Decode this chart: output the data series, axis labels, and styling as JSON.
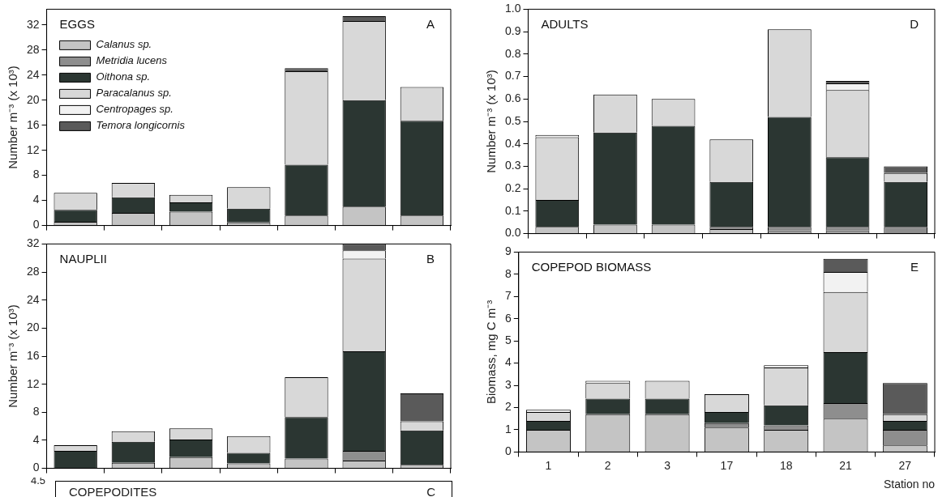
{
  "chart_data": [
    {
      "type": "bar",
      "title": "EGGS",
      "annotations": [
        "A"
      ],
      "ylabel": "Number m⁻³ (x 10³)",
      "categories": [
        null,
        null,
        null,
        null,
        null,
        null,
        null
      ],
      "stacked": true,
      "ylim": [
        0,
        34.5
      ],
      "yticks": [
        0,
        4,
        8,
        12,
        16,
        20,
        24,
        28,
        32
      ],
      "grid": false,
      "legend": "top left",
      "tick_labels": "y",
      "series": [
        {
          "name": "Calanus sp.",
          "color": "#c4c4c4",
          "values": [
            0.6,
            2.0,
            2.2,
            0.5,
            1.6,
            3.0,
            1.6
          ]
        },
        {
          "name": "Metridia lucens",
          "color": "#8e8e8e",
          "values": [
            0,
            0,
            0,
            0,
            0,
            0,
            0
          ]
        },
        {
          "name": "Oithona sp.",
          "color": "#2b3632",
          "values": [
            1.9,
            2.5,
            1.5,
            2.2,
            8.1,
            17.0,
            15.1
          ]
        },
        {
          "name": "Paracalanus sp.",
          "color": "#d8d8d8",
          "values": [
            2.7,
            2.3,
            1.2,
            3.4,
            14.9,
            12.6,
            5.4
          ]
        },
        {
          "name": "Centropages sp.",
          "color": "#f2f2f2",
          "values": [
            0,
            0,
            0,
            0,
            0,
            0,
            0
          ]
        },
        {
          "name": "Temora longicornis",
          "color": "#5a5a5a",
          "values": [
            0,
            0,
            0,
            0,
            0.5,
            0.8,
            0
          ]
        }
      ]
    },
    {
      "type": "bar",
      "title": "NAUPLII",
      "annotations": [
        "B"
      ],
      "ylabel": "Number m⁻³ (x 10³)",
      "categories": [
        null,
        null,
        null,
        null,
        null,
        null,
        null
      ],
      "stacked": true,
      "ylim": [
        0,
        32
      ],
      "yticks": [
        0,
        4,
        8,
        12,
        16,
        20,
        24,
        28,
        32
      ],
      "grid": false,
      "tick_labels": "y",
      "series": [
        {
          "color": "#c4c4c4",
          "values": [
            0,
            0.8,
            1.6,
            0.7,
            1.4,
            1.1,
            0.5
          ]
        },
        {
          "color": "#8e8e8e",
          "values": [
            0,
            0,
            0,
            0,
            0,
            1.4,
            0
          ]
        },
        {
          "color": "#2b3632",
          "values": [
            2.5,
            3.0,
            2.5,
            1.5,
            5.9,
            14.2,
            4.9
          ]
        },
        {
          "color": "#d8d8d8",
          "values": [
            0.8,
            1.5,
            1.6,
            2.4,
            5.7,
            13.2,
            1.3
          ]
        },
        {
          "color": "#f2f2f2",
          "values": [
            0,
            0,
            0,
            0,
            0,
            1.2,
            0
          ]
        },
        {
          "color": "#5a5a5a",
          "values": [
            0,
            0,
            0,
            0,
            0,
            0.9,
            4.0
          ]
        }
      ]
    },
    {
      "type": "other",
      "title": "COPEPODITES",
      "annotations": [
        "C",
        "4.5"
      ]
    },
    {
      "type": "bar",
      "title": "ADULTS",
      "annotations": [
        "D"
      ],
      "ylabel": "Number m⁻³ (x 10³)",
      "categories": [
        null,
        null,
        null,
        null,
        null,
        null,
        null
      ],
      "stacked": true,
      "ylim": [
        0,
        1.0
      ],
      "yticks": [
        {
          "value": 0,
          "label": "0.0"
        },
        0.1,
        0.2,
        0.3,
        0.4,
        0.5,
        0.6,
        0.7,
        0.8,
        0.9,
        {
          "value": 1,
          "label": "1.0"
        }
      ],
      "grid": false,
      "tick_labels": "y",
      "series": [
        {
          "color": "#c4c4c4",
          "values": [
            0.03,
            0.04,
            0.04,
            0.02,
            0.01,
            0.01,
            0
          ]
        },
        {
          "color": "#8e8e8e",
          "values": [
            0,
            0,
            0,
            0.01,
            0.02,
            0.02,
            0.03
          ]
        },
        {
          "color": "#2b3632",
          "values": [
            0.12,
            0.41,
            0.44,
            0.2,
            0.49,
            0.31,
            0.2
          ]
        },
        {
          "color": "#d8d8d8",
          "values": [
            0.28,
            0.17,
            0.12,
            0.19,
            0.39,
            0.3,
            0.04
          ]
        },
        {
          "color": "#f2f2f2",
          "values": [
            0.01,
            0,
            0,
            0,
            0,
            0.03,
            0
          ]
        },
        {
          "color": "#5a5a5a",
          "values": [
            0,
            0,
            0,
            0,
            0,
            0.01,
            0.03
          ]
        }
      ]
    },
    {
      "type": "bar",
      "title": "COPEPOD BIOMASS",
      "annotations": [
        "E"
      ],
      "ylabel": "Biomass, mg C m⁻³",
      "xlabel": "Station no",
      "categories": [
        "1",
        "2",
        "3",
        "17",
        "18",
        "21",
        "27"
      ],
      "stacked": true,
      "ylim": [
        0,
        9
      ],
      "yticks": [
        0,
        1,
        2,
        3,
        4,
        5,
        6,
        7,
        8,
        9
      ],
      "grid": false,
      "series": [
        {
          "color": "#c4c4c4",
          "values": [
            1.0,
            1.7,
            1.7,
            1.1,
            1.0,
            1.5,
            0.3
          ]
        },
        {
          "color": "#8e8e8e",
          "values": [
            0,
            0,
            0,
            0.2,
            0.2,
            0.7,
            0.7
          ]
        },
        {
          "color": "#2b3632",
          "values": [
            0.4,
            0.7,
            0.7,
            0.5,
            0.9,
            2.3,
            0.4
          ]
        },
        {
          "color": "#d8d8d8",
          "values": [
            0.4,
            0.7,
            0.8,
            0.8,
            1.7,
            2.7,
            0.3
          ]
        },
        {
          "color": "#f2f2f2",
          "values": [
            0.1,
            0.1,
            0,
            0,
            0.1,
            0.9,
            0
          ]
        },
        {
          "color": "#5a5a5a",
          "values": [
            0,
            0,
            0,
            0,
            0,
            0.6,
            1.4
          ]
        }
      ]
    }
  ]
}
